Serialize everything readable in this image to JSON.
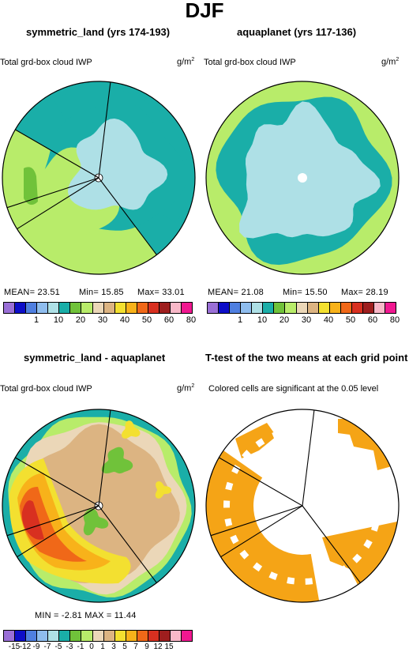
{
  "figure": {
    "title": "DJF",
    "panels": {
      "p1": {
        "title": "symmetric_land (yrs 174-193)",
        "label": "Total grd-box cloud IWP",
        "unit": "g/m",
        "unit_exp": "2",
        "mean": "MEAN=  23.51",
        "min": "Min=  15.85",
        "max": "Max=  33.01"
      },
      "p2": {
        "title": "aquaplanet (yrs 117-136)",
        "label": "Total grd-box cloud IWP",
        "unit": "g/m",
        "unit_exp": "2",
        "mean": "MEAN=  21.08",
        "min": "Min=  15.50",
        "max": "Max=  28.19"
      },
      "p3": {
        "title": "symmetric_land - aquaplanet",
        "label": "Total grd-box cloud IWP",
        "unit": "g/m",
        "unit_exp": "2",
        "minmax": "MIN =  -2.81  MAX =  11.44"
      },
      "p4": {
        "title": "T-test of the two means at each grid point",
        "label": "Colored cells are significant at the 0.05 level"
      }
    }
  },
  "chart_data": [
    {
      "type": "heatmap",
      "title": "symmetric_land (yrs 174-193)",
      "projection": "polar",
      "variable": "Total grd-box cloud IWP",
      "units": "g/m2",
      "stats": {
        "mean": 23.51,
        "min": 15.85,
        "max": 33.01
      },
      "levels": [
        1,
        10,
        20,
        30,
        40,
        50,
        60,
        80
      ],
      "colors": [
        "#9a6fd6",
        "#0d0dc8",
        "#4f7fe0",
        "#8fbdee",
        "#aee0e6",
        "#1aaea8",
        "#70c23a",
        "#b8ec6a",
        "#ebd7b8",
        "#dcb482",
        "#f3e030",
        "#f8b21a",
        "#f06818",
        "#d83020",
        "#9e1e1e",
        "#f8b8c8",
        "#f01890"
      ],
      "dominant_levels": [
        "10-20",
        "20-30",
        "30-40"
      ]
    },
    {
      "type": "heatmap",
      "title": "aquaplanet (yrs 117-136)",
      "projection": "polar",
      "variable": "Total grd-box cloud IWP",
      "units": "g/m2",
      "stats": {
        "mean": 21.08,
        "min": 15.5,
        "max": 28.19
      },
      "levels": [
        1,
        10,
        20,
        30,
        40,
        50,
        60,
        80
      ],
      "colors": [
        "#9a6fd6",
        "#0d0dc8",
        "#4f7fe0",
        "#8fbdee",
        "#aee0e6",
        "#1aaea8",
        "#70c23a",
        "#b8ec6a",
        "#ebd7b8",
        "#dcb482",
        "#f3e030",
        "#f8b21a",
        "#f06818",
        "#d83020",
        "#9e1e1e",
        "#f8b8c8",
        "#f01890"
      ],
      "dominant_levels": [
        "10-20",
        "20-30"
      ]
    },
    {
      "type": "heatmap",
      "title": "symmetric_land - aquaplanet",
      "projection": "polar",
      "variable": "Total grd-box cloud IWP",
      "units": "g/m2",
      "stats": {
        "min": -2.81,
        "max": 11.44
      },
      "levels": [
        -15,
        -12,
        -9,
        -7,
        -5,
        -3,
        -1,
        0,
        1,
        3,
        5,
        7,
        9,
        12,
        15
      ],
      "colors": [
        "#9a6fd6",
        "#0d0dc8",
        "#4f7fe0",
        "#8fbdee",
        "#aee0e6",
        "#1aaea8",
        "#70c23a",
        "#b8ec6a",
        "#ebd7b8",
        "#dcb482",
        "#f3e030",
        "#f8b21a",
        "#f06818",
        "#d83020",
        "#9e1e1e",
        "#f8b8c8",
        "#f01890"
      ]
    },
    {
      "type": "heatmap",
      "title": "T-test of the two means at each grid point",
      "projection": "polar",
      "significance_level": 0.05,
      "colors": {
        "significant": "#f5a416",
        "not_significant": "#ffffff"
      }
    }
  ]
}
